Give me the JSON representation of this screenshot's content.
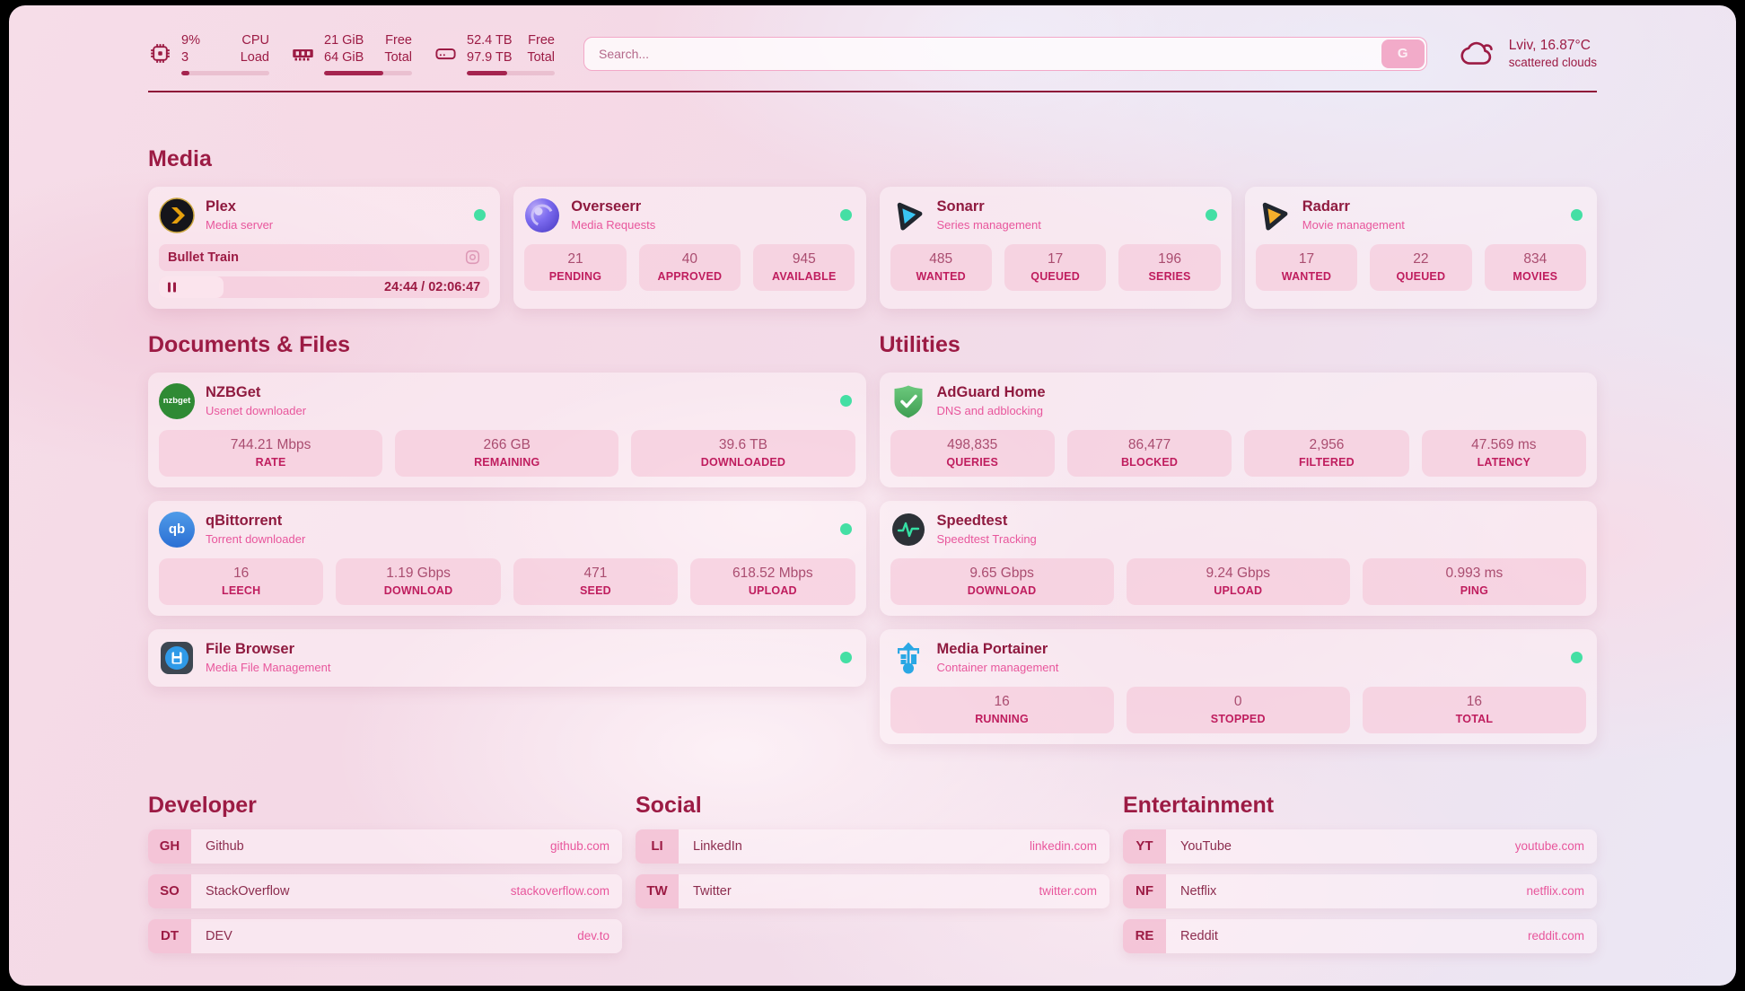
{
  "colors": {
    "accent": "#9c1b44",
    "pink": "#e8569c",
    "online_green": "#44dfa4",
    "bar_fill": "#a5244f"
  },
  "header": {
    "system_stats": [
      {
        "icon": "cpu-icon",
        "value_top": "9%",
        "label_top": "CPU",
        "value_bottom": "3",
        "label_bottom": "Load",
        "progress_pct": 9
      },
      {
        "icon": "ram-icon",
        "value_top": "21 GiB",
        "label_top": "Free",
        "value_bottom": "64 GiB",
        "label_bottom": "Total",
        "progress_pct": 67
      },
      {
        "icon": "disk-icon",
        "value_top": "52.4 TB",
        "label_top": "Free",
        "value_bottom": "97.9 TB",
        "label_bottom": "Total",
        "progress_pct": 46
      }
    ],
    "search": {
      "placeholder": "Search...",
      "engine_button": "G"
    },
    "weather": {
      "line1": "Lviv, 16.87°C",
      "line2": "scattered clouds"
    }
  },
  "media": {
    "title": "Media",
    "cards": [
      {
        "name": "Plex",
        "desc": "Media server",
        "online": true,
        "now_playing": {
          "title": "Bullet Train",
          "time": "24:44 / 02:06:47",
          "progress_pct": 19.5
        }
      },
      {
        "name": "Overseerr",
        "desc": "Media Requests",
        "online": true,
        "stats": [
          {
            "value": "21",
            "label": "PENDING"
          },
          {
            "value": "40",
            "label": "APPROVED"
          },
          {
            "value": "945",
            "label": "AVAILABLE"
          }
        ]
      },
      {
        "name": "Sonarr",
        "desc": "Series management",
        "online": true,
        "stats": [
          {
            "value": "485",
            "label": "WANTED"
          },
          {
            "value": "17",
            "label": "QUEUED"
          },
          {
            "value": "196",
            "label": "SERIES"
          }
        ]
      },
      {
        "name": "Radarr",
        "desc": "Movie management",
        "online": true,
        "stats": [
          {
            "value": "17",
            "label": "WANTED"
          },
          {
            "value": "22",
            "label": "QUEUED"
          },
          {
            "value": "834",
            "label": "MOVIES"
          }
        ]
      }
    ]
  },
  "documents": {
    "title": "Documents & Files",
    "cards": [
      {
        "name": "NZBGet",
        "desc": "Usenet downloader",
        "online": true,
        "icon_text": "nzbget",
        "stats": [
          {
            "value": "744.21 Mbps",
            "label": "RATE"
          },
          {
            "value": "266 GB",
            "label": "REMAINING"
          },
          {
            "value": "39.6 TB",
            "label": "DOWNLOADED"
          }
        ]
      },
      {
        "name": "qBittorrent",
        "desc": "Torrent downloader",
        "online": true,
        "icon_text": "qb",
        "stats": [
          {
            "value": "16",
            "label": "LEECH"
          },
          {
            "value": "1.19 Gbps",
            "label": "DOWNLOAD"
          },
          {
            "value": "471",
            "label": "SEED"
          },
          {
            "value": "618.52 Mbps",
            "label": "UPLOAD"
          }
        ]
      },
      {
        "name": "File Browser",
        "desc": "Media File Management",
        "online": true,
        "stats": []
      }
    ]
  },
  "utilities": {
    "title": "Utilities",
    "cards": [
      {
        "name": "AdGuard Home",
        "desc": "DNS and adblocking",
        "online": false,
        "stats": [
          {
            "value": "498,835",
            "label": "QUERIES"
          },
          {
            "value": "86,477",
            "label": "BLOCKED"
          },
          {
            "value": "2,956",
            "label": "FILTERED"
          },
          {
            "value": "47.569 ms",
            "label": "LATENCY"
          }
        ]
      },
      {
        "name": "Speedtest",
        "desc": "Speedtest Tracking",
        "online": false,
        "stats": [
          {
            "value": "9.65 Gbps",
            "label": "DOWNLOAD"
          },
          {
            "value": "9.24 Gbps",
            "label": "UPLOAD"
          },
          {
            "value": "0.993 ms",
            "label": "PING"
          }
        ]
      },
      {
        "name": "Media Portainer",
        "desc": "Container management",
        "online": true,
        "stats": [
          {
            "value": "16",
            "label": "RUNNING"
          },
          {
            "value": "0",
            "label": "STOPPED"
          },
          {
            "value": "16",
            "label": "TOTAL"
          }
        ]
      }
    ]
  },
  "link_groups": [
    {
      "title": "Developer",
      "links": [
        {
          "abbr": "GH",
          "name": "Github",
          "url": "github.com"
        },
        {
          "abbr": "SO",
          "name": "StackOverflow",
          "url": "stackoverflow.com"
        },
        {
          "abbr": "DT",
          "name": "DEV",
          "url": "dev.to"
        }
      ]
    },
    {
      "title": "Social",
      "links": [
        {
          "abbr": "LI",
          "name": "LinkedIn",
          "url": "linkedin.com"
        },
        {
          "abbr": "TW",
          "name": "Twitter",
          "url": "twitter.com"
        }
      ]
    },
    {
      "title": "Entertainment",
      "links": [
        {
          "abbr": "YT",
          "name": "YouTube",
          "url": "youtube.com"
        },
        {
          "abbr": "NF",
          "name": "Netflix",
          "url": "netflix.com"
        },
        {
          "abbr": "RE",
          "name": "Reddit",
          "url": "reddit.com"
        }
      ]
    }
  ]
}
